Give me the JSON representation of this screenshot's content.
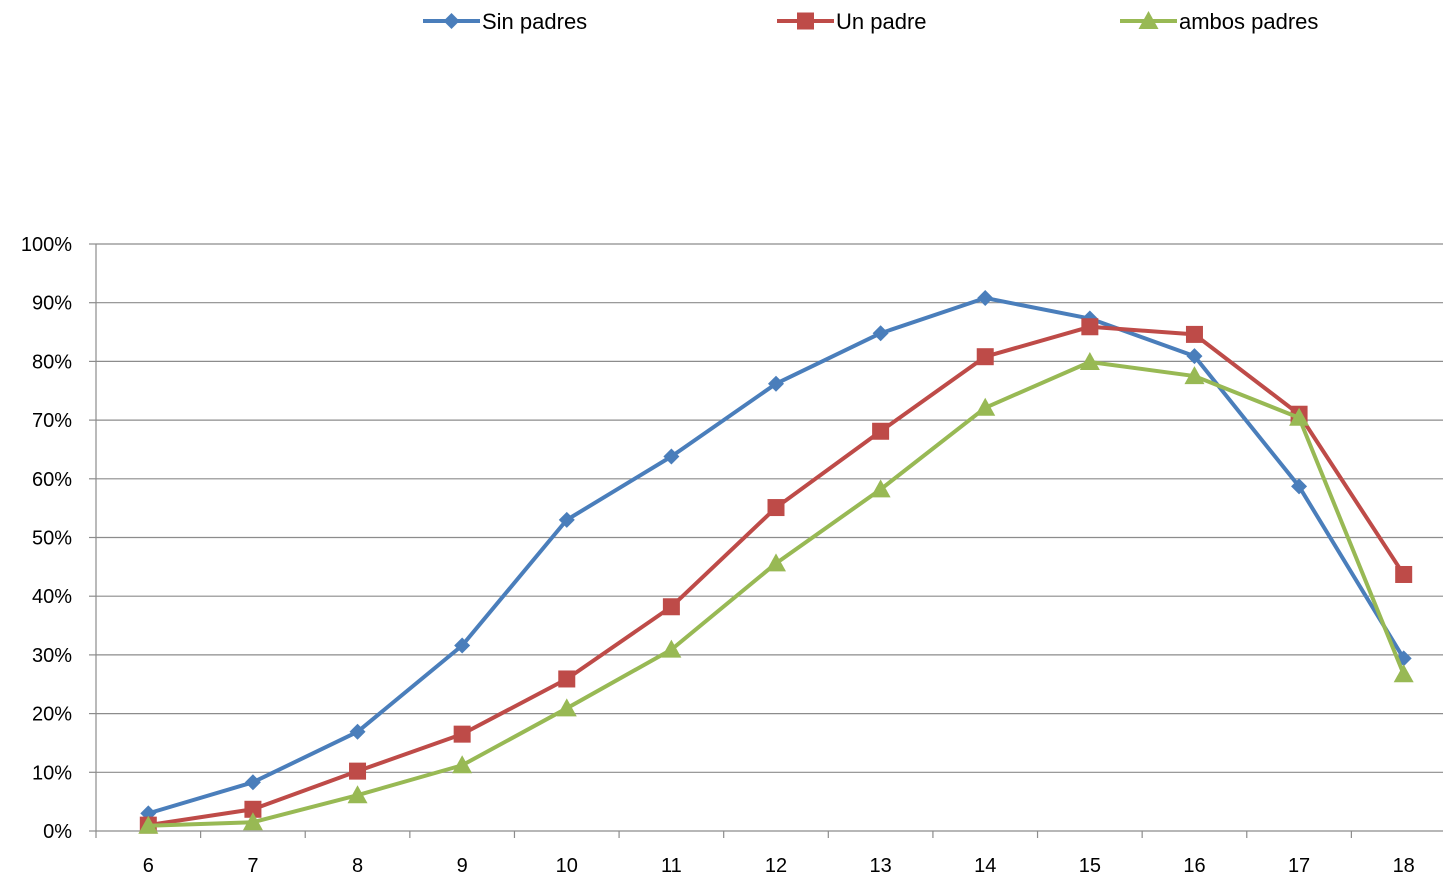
{
  "chart_data": {
    "type": "line",
    "title": "",
    "xlabel": "",
    "ylabel": "",
    "x": [
      "6",
      "7",
      "8",
      "9",
      "10",
      "11",
      "12",
      "13",
      "14",
      "15",
      "16",
      "17",
      "18"
    ],
    "ylim": [
      0,
      100
    ],
    "y_ticks": [
      "0%",
      "10%",
      "20%",
      "30%",
      "40%",
      "50%",
      "60%",
      "70%",
      "80%",
      "90%",
      "100%"
    ],
    "y_tick_values": [
      0,
      10,
      20,
      30,
      40,
      50,
      60,
      70,
      80,
      90,
      100
    ],
    "grid": "horizontal",
    "legend_position": "top",
    "series": [
      {
        "name": "Sin padres",
        "color": "#4a7ebb",
        "marker": "diamond",
        "values": [
          3.0,
          8.3,
          16.9,
          31.6,
          53.0,
          63.8,
          76.2,
          84.8,
          90.8,
          87.3,
          80.9,
          58.7,
          29.4
        ]
      },
      {
        "name": "Un padre",
        "color": "#be4b48",
        "marker": "square",
        "values": [
          1.0,
          3.7,
          10.2,
          16.5,
          25.9,
          38.2,
          55.1,
          68.1,
          80.8,
          85.9,
          84.6,
          71.0,
          43.7
        ]
      },
      {
        "name": "ambos padres",
        "color": "#98b954",
        "marker": "triangle",
        "values": [
          0.9,
          1.5,
          6.1,
          11.2,
          20.9,
          30.9,
          45.6,
          58.2,
          72.1,
          79.9,
          77.5,
          70.4,
          26.7
        ]
      }
    ]
  }
}
